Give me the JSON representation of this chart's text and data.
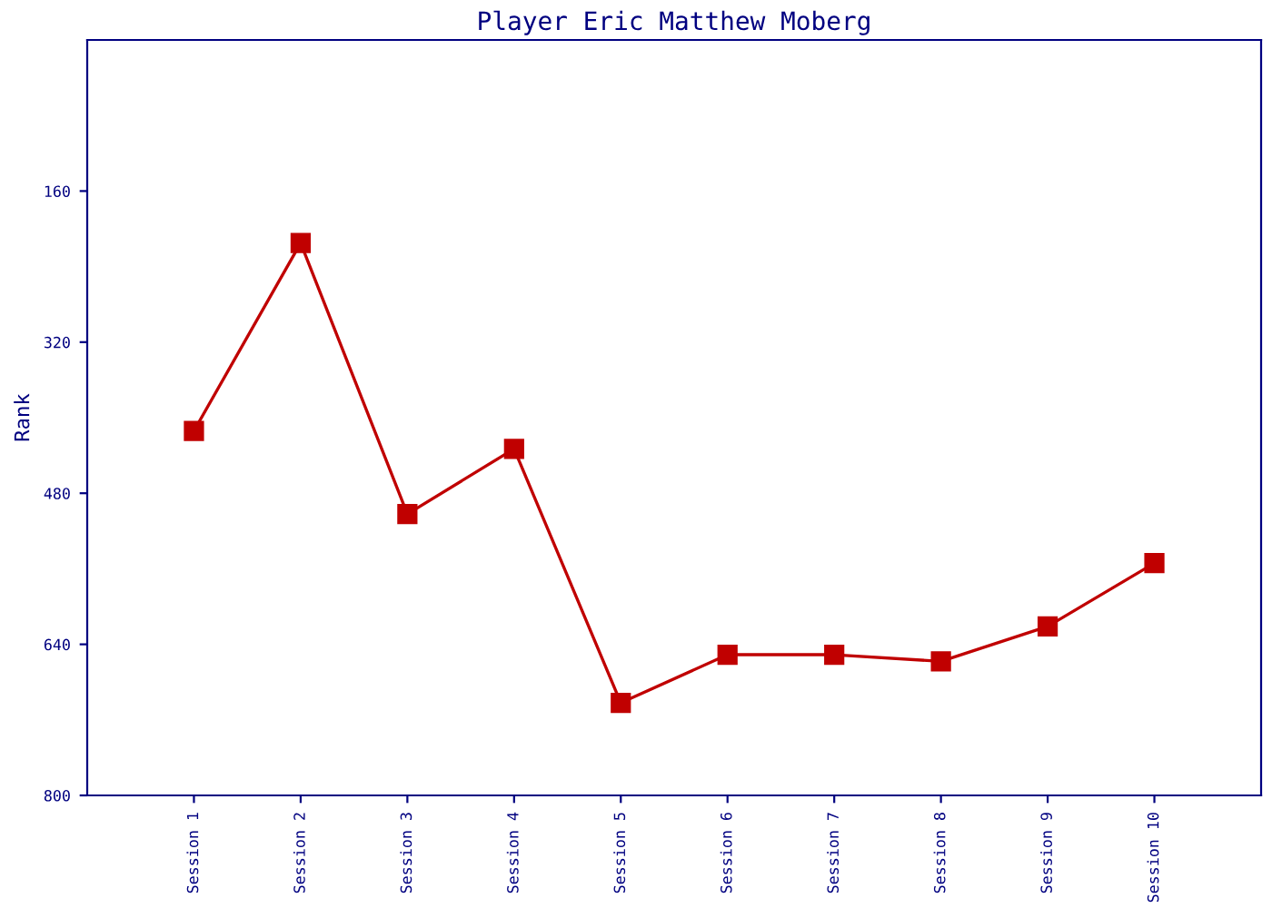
{
  "chart_data": {
    "type": "line",
    "title": "Player Eric Matthew Moberg",
    "ylabel": "Rank",
    "categories": [
      "Session 1",
      "Session 2",
      "Session 3",
      "Session 4",
      "Session 5",
      "Session 6",
      "Session 7",
      "Session 8",
      "Session 9",
      "Session 10"
    ],
    "series": [
      {
        "color": "#c00000",
        "values": [
          414,
          215,
          502,
          433,
          702,
          651,
          651,
          658,
          621,
          554
        ]
      }
    ],
    "ylim": [
      800,
      0
    ],
    "yticks": [
      160,
      320,
      480,
      640,
      800
    ],
    "grid": false,
    "legend": false,
    "marker": "square",
    "line_style": "solid"
  }
}
